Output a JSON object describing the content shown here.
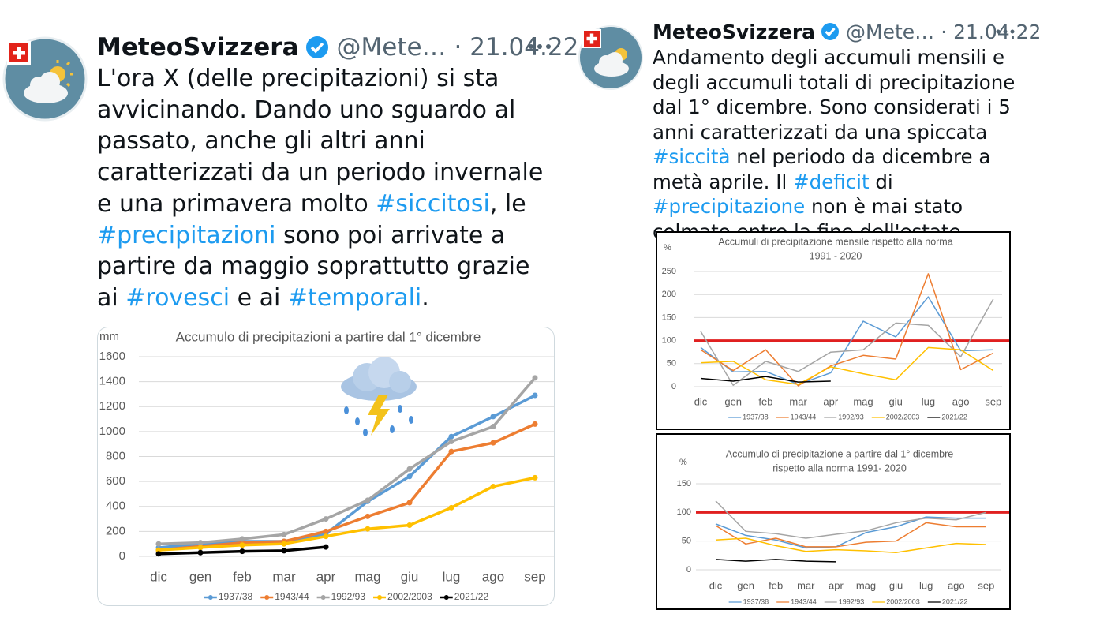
{
  "tweets": [
    {
      "name": "MeteoSvizzera",
      "handle": "@Mete…",
      "date": "· 21.04.22",
      "text": [
        "L'ora X (delle precipitazioni) si sta avvicinando. Dando uno sguardo al passato, anche gli altri anni caratterizzati da un periodo invernale e una primavera molto ",
        "#siccitosi",
        ", le ",
        "#precipitazioni",
        " sono poi arrivate a partire da maggio soprattutto grazie ai ",
        "#rovesci",
        " e ai ",
        "#temporali",
        "."
      ],
      "charts": [
        {
          "type": "line",
          "title": [
            "Accumulo di precipitazioni a partire dal 1° dicembre"
          ],
          "y_label": "mm",
          "categories": [
            "dic",
            "gen",
            "feb",
            "mar",
            "apr",
            "mag",
            "giu",
            "lug",
            "ago",
            "sep"
          ],
          "ylim": [
            0,
            1600
          ],
          "yticks": [
            0,
            200,
            400,
            600,
            800,
            1000,
            1200,
            1400,
            1600
          ],
          "grid": true,
          "markers": true,
          "series": [
            {
              "name": "1937/38",
              "color": "#5b9bd5",
              "values": [
                70,
                100,
                120,
                120,
                180,
                440,
                640,
                960,
                1120,
                1290
              ]
            },
            {
              "name": "1943/44",
              "color": "#ed7d31",
              "values": [
                50,
                80,
                110,
                120,
                200,
                320,
                430,
                840,
                910,
                1060
              ]
            },
            {
              "name": "1992/93",
              "color": "#a5a5a5",
              "values": [
                100,
                110,
                140,
                175,
                300,
                450,
                700,
                920,
                1040,
                1430
              ]
            },
            {
              "name": "2002/2003",
              "color": "#ffc000",
              "values": [
                50,
                70,
                90,
                100,
                160,
                220,
                250,
                390,
                560,
                630
              ]
            },
            {
              "name": "2021/22",
              "color": "#000000",
              "values": [
                20,
                30,
                40,
                45,
                75,
                null,
                null,
                null,
                null,
                null
              ]
            }
          ]
        }
      ]
    },
    {
      "name": "MeteoSvizzera",
      "handle": "@Mete…",
      "date": "· 21.04.22",
      "text": [
        "Andamento degli accumuli mensili e degli accumuli totali di precipitazione dal 1° dicembre. Sono considerati i 5 anni caratterizzati da una spiccata ",
        "#siccità",
        " nel periodo da dicembre a metà aprile. Il ",
        "#deficit",
        " di ",
        "#precipitazione",
        " non è mai stato colmato entro la fine dell'estate."
      ],
      "charts": [
        {
          "type": "line",
          "title": [
            "Accumuli di precipitazione mensile rispetto alla norma",
            "1991 - 2020"
          ],
          "y_label": "%",
          "categories": [
            "dic",
            "gen",
            "feb",
            "mar",
            "apr",
            "mag",
            "giu",
            "lug",
            "ago",
            "sep"
          ],
          "ylim": [
            0,
            250
          ],
          "yticks": [
            0,
            50,
            100,
            150,
            200,
            250
          ],
          "grid": true,
          "markers": false,
          "reference_line": 100,
          "reference_color": "#e02020",
          "series": [
            {
              "name": "1937/38",
              "color": "#5b9bd5",
              "values": [
                85,
                32,
                33,
                5,
                30,
                142,
                108,
                195,
                78,
                80
              ]
            },
            {
              "name": "1943/44",
              "color": "#ed7d31",
              "values": [
                80,
                35,
                80,
                2,
                45,
                68,
                60,
                245,
                37,
                73
              ]
            },
            {
              "name": "1992/93",
              "color": "#a5a5a5",
              "values": [
                120,
                3,
                55,
                33,
                75,
                80,
                138,
                133,
                65,
                190
              ]
            },
            {
              "name": "2002/2003",
              "color": "#ffc000",
              "values": [
                52,
                55,
                15,
                5,
                43,
                28,
                15,
                85,
                80,
                35
              ]
            },
            {
              "name": "2021/22",
              "color": "#000000",
              "values": [
                18,
                12,
                22,
                10,
                12,
                null,
                null,
                null,
                null,
                null
              ]
            }
          ]
        },
        {
          "type": "line",
          "title": [
            "Accumulo di precipitazione a partire dal 1° dicembre",
            "rispetto alla norma 1991- 2020"
          ],
          "y_label": "%",
          "categories": [
            "dic",
            "gen",
            "feb",
            "mar",
            "apr",
            "mag",
            "giu",
            "lug",
            "ago",
            "sep"
          ],
          "ylim": [
            0,
            150
          ],
          "yticks": [
            0,
            50,
            100,
            150
          ],
          "grid": true,
          "markers": false,
          "reference_line": 100,
          "reference_color": "#e02020",
          "series": [
            {
              "name": "1937/38",
              "color": "#5b9bd5",
              "values": [
                80,
                60,
                52,
                38,
                40,
                65,
                75,
                92,
                90,
                90
              ]
            },
            {
              "name": "1943/44",
              "color": "#ed7d31",
              "values": [
                77,
                45,
                55,
                40,
                40,
                48,
                50,
                82,
                75,
                75
              ]
            },
            {
              "name": "1992/93",
              "color": "#a5a5a5",
              "values": [
                120,
                67,
                63,
                55,
                62,
                68,
                82,
                90,
                87,
                100
              ]
            },
            {
              "name": "2002/2003",
              "color": "#ffc000",
              "values": [
                52,
                55,
                42,
                32,
                35,
                33,
                30,
                38,
                46,
                44
              ]
            },
            {
              "name": "2021/22",
              "color": "#000000",
              "values": [
                18,
                15,
                18,
                15,
                14,
                null,
                null,
                null,
                null,
                null
              ]
            }
          ]
        }
      ]
    }
  ]
}
